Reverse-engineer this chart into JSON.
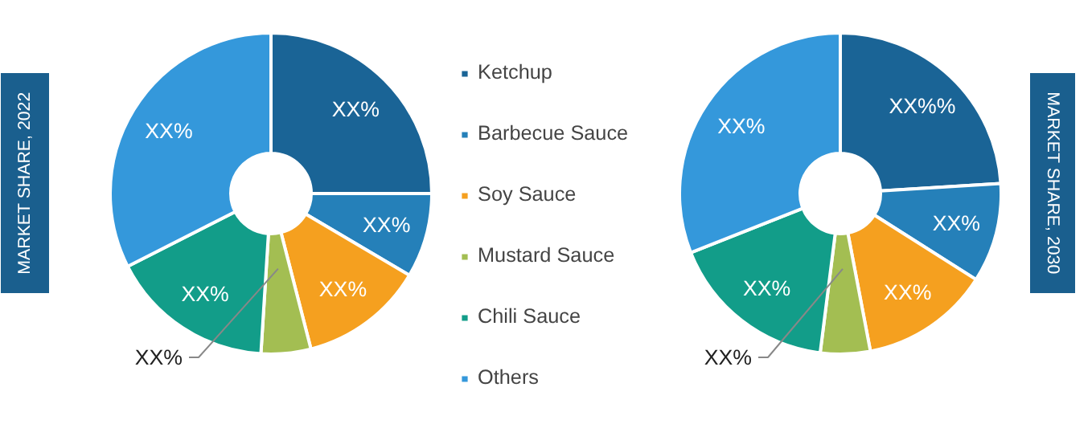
{
  "chart_data": [
    {
      "type": "donut",
      "title": "MARKET SHARE, 2022",
      "categories": [
        "Ketchup",
        "Barbecue Sauce",
        "Soy Sauce",
        "Mustard Sauce",
        "Chili Sauce",
        "Others"
      ],
      "values": [
        25,
        8.5,
        12.5,
        5,
        16.5,
        32.5
      ],
      "colors": [
        "#1a6496",
        "#2580b9",
        "#f5a01f",
        "#a3be52",
        "#129d89",
        "#3498db"
      ],
      "value_labels": [
        "XX%",
        "XX%",
        "XX%",
        "XX%",
        "XX%",
        "XX%"
      ],
      "legend": "right"
    },
    {
      "type": "donut",
      "title": "MARKET SHARE, 2030",
      "categories": [
        null,
        null,
        null,
        null,
        null,
        null
      ],
      "values": [
        24,
        10,
        13,
        5,
        17,
        31
      ],
      "colors": [
        "#1a6496",
        "#2580b9",
        "#f5a01f",
        "#a3be52",
        "#129d89",
        "#3498db"
      ],
      "value_labels": [
        "XX%%",
        "XX%",
        "XX%",
        "XX%",
        "XX%",
        "XX%"
      ]
    }
  ]
}
